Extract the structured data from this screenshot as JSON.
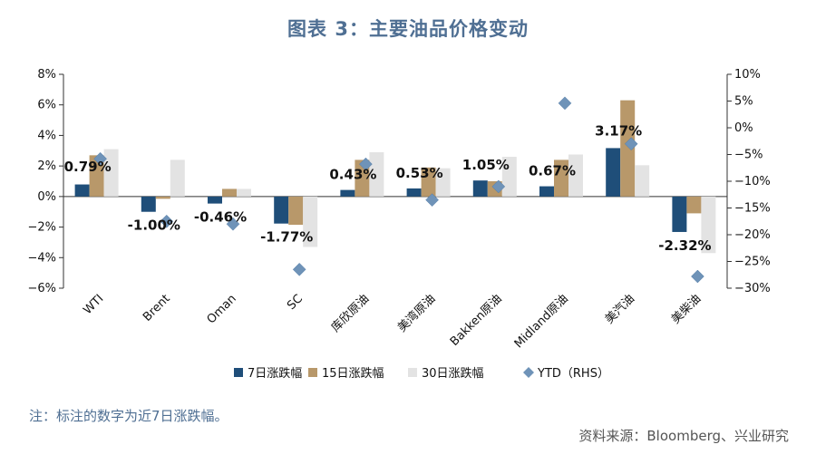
{
  "title": "图表 3：主要油品价格变动",
  "note": "注：标注的数字为近7日涨跌幅。",
  "source": "资料来源：Bloomberg、兴业研究",
  "colors": {
    "series7": "#1f4e79",
    "series15": "#b8986a",
    "series30": "#e3e3e3",
    "ytd": "#6f93b8",
    "title": "#4f6f93"
  },
  "chart_data": {
    "type": "bar",
    "categories": [
      "WTI",
      "Brent",
      "Oman",
      "SC",
      "库欣原油",
      "美湾原油",
      "Bakken原油",
      "Midland原油",
      "美汽油",
      "美柴油"
    ],
    "series": [
      {
        "name": "7日涨跌幅",
        "axis": "left",
        "values": [
          0.79,
          -1.0,
          -0.46,
          -1.77,
          0.43,
          0.53,
          1.05,
          0.67,
          3.17,
          -2.32
        ]
      },
      {
        "name": "15日涨跌幅",
        "axis": "left",
        "values": [
          2.7,
          -0.15,
          0.5,
          -1.85,
          2.4,
          1.9,
          1.0,
          2.4,
          6.3,
          -1.1
        ]
      },
      {
        "name": "30日涨跌幅",
        "axis": "left",
        "values": [
          3.1,
          2.4,
          0.5,
          -3.3,
          2.9,
          1.85,
          2.6,
          2.75,
          2.05,
          -3.7
        ]
      }
    ],
    "ytd": {
      "name": "YTD（RHS）",
      "axis": "right",
      "values": [
        -5.8,
        -17.5,
        -18.0,
        -26.5,
        -6.8,
        -13.5,
        -11.0,
        4.6,
        -3.0,
        -27.8
      ]
    },
    "data_labels": [
      "0.79%",
      "-1.00%",
      "-0.46%",
      "-1.77%",
      "0.43%",
      "0.53%",
      "1.05%",
      "0.67%",
      "3.17%",
      "-2.32%"
    ],
    "y_left": {
      "min": -6,
      "max": 8,
      "step": 2,
      "ticks": [
        "8%",
        "6%",
        "4%",
        "2%",
        "0%",
        "−2%",
        "−4%",
        "−6%"
      ]
    },
    "y_right": {
      "min": -30,
      "max": 10,
      "step": 5,
      "ticks": [
        "10%",
        "5%",
        "0%",
        "−5%",
        "−10%",
        "−15%",
        "−20%",
        "−25%",
        "−30%"
      ]
    },
    "legend": [
      "7日涨跌幅",
      "15日涨跌幅",
      "30日涨跌幅",
      "YTD（RHS）"
    ],
    "legend_position": "bottom"
  }
}
